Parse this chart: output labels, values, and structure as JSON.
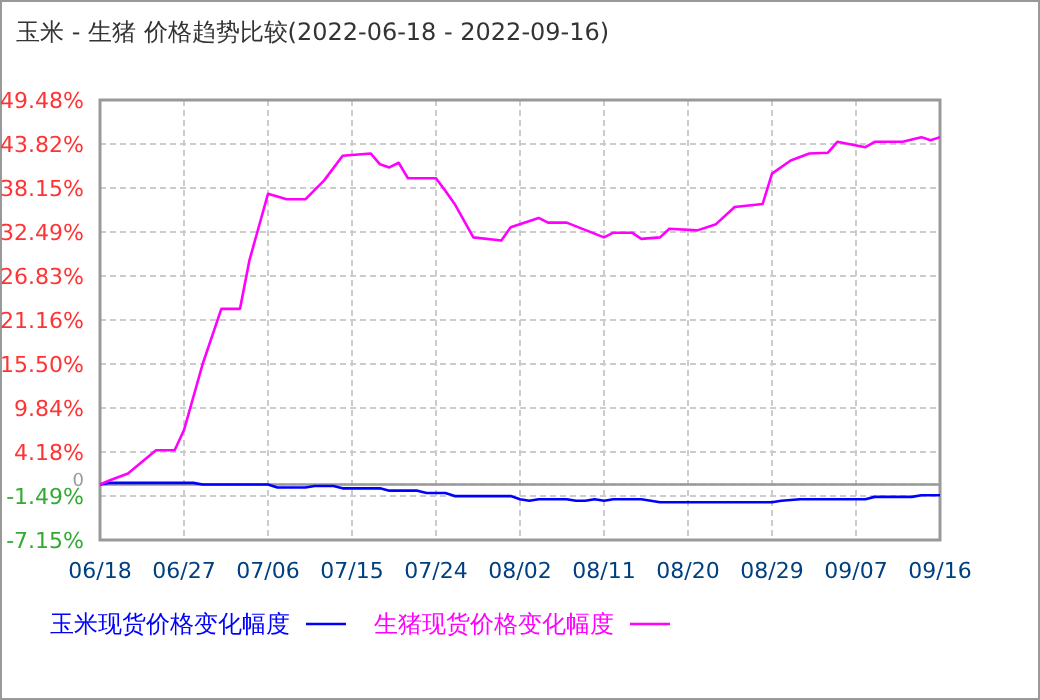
{
  "chart_data": {
    "type": "line",
    "title": "玉米 - 生猪 价格趋势比较(2022-06-18 - 2022-09-16)",
    "xlim": [
      "2022-06-18",
      "2022-09-16"
    ],
    "xticks": [
      {
        "value": "2022-06-18",
        "label": "06/18"
      },
      {
        "value": "2022-06-27",
        "label": "06/27"
      },
      {
        "value": "2022-07-06",
        "label": "07/06"
      },
      {
        "value": "2022-07-15",
        "label": "07/15"
      },
      {
        "value": "2022-07-24",
        "label": "07/24"
      },
      {
        "value": "2022-08-02",
        "label": "08/02"
      },
      {
        "value": "2022-08-11",
        "label": "08/11"
      },
      {
        "value": "2022-08-20",
        "label": "08/20"
      },
      {
        "value": "2022-08-29",
        "label": "08/29"
      },
      {
        "value": "2022-09-07",
        "label": "09/07"
      },
      {
        "value": "2022-09-16",
        "label": "09/16"
      }
    ],
    "ylim": [
      -7.15,
      49.48
    ],
    "yticks": [
      {
        "value": -7.15,
        "label": "-7.15%"
      },
      {
        "value": -1.49,
        "label": "-1.49%"
      },
      0,
      {
        "value": 4.18,
        "label": "4.18%"
      },
      {
        "value": 9.84,
        "label": "9.84%"
      },
      {
        "value": 15.5,
        "label": "15.50%"
      },
      {
        "value": 21.16,
        "label": "21.16%"
      },
      {
        "value": 26.83,
        "label": "26.83%"
      },
      {
        "value": 32.49,
        "label": "32.49%"
      },
      {
        "value": 38.15,
        "label": "38.15%"
      },
      {
        "value": 43.82,
        "label": "43.82%"
      },
      {
        "value": 49.48,
        "label": "49.48%"
      }
    ],
    "grid": true,
    "legend": "bottom",
    "marker": "none",
    "line_style": "solid",
    "ref_lines": [
      {
        "axis": "y",
        "value": 0,
        "color": "#999999"
      }
    ],
    "series": [
      {
        "name": "玉米现货价格变化幅度",
        "color": "#0000ff",
        "x": [
          "2022-06-18",
          "2022-06-19",
          "2022-06-28",
          "2022-06-29",
          "2022-07-06",
          "2022-07-07",
          "2022-07-10",
          "2022-07-11",
          "2022-07-13",
          "2022-07-14",
          "2022-07-18",
          "2022-07-19",
          "2022-07-22",
          "2022-07-23",
          "2022-07-25",
          "2022-07-26",
          "2022-08-01",
          "2022-08-02",
          "2022-08-03",
          "2022-08-04",
          "2022-08-07",
          "2022-08-08",
          "2022-08-09",
          "2022-08-10",
          "2022-08-11",
          "2022-08-12",
          "2022-08-15",
          "2022-08-17",
          "2022-08-29",
          "2022-08-30",
          "2022-09-01",
          "2022-09-08",
          "2022-09-09",
          "2022-09-13",
          "2022-09-14",
          "2022-09-16"
        ],
        "values": [
          0,
          0.2,
          0.2,
          0,
          0,
          -0.4,
          -0.4,
          -0.2,
          -0.2,
          -0.5,
          -0.5,
          -0.8,
          -0.8,
          -1.1,
          -1.1,
          -1.5,
          -1.5,
          -1.9,
          -2.1,
          -1.9,
          -1.9,
          -2.1,
          -2.1,
          -1.9,
          -2.1,
          -1.9,
          -1.9,
          -2.3,
          -2.3,
          -2.1,
          -1.9,
          -1.9,
          -1.6,
          -1.6,
          -1.4,
          -1.4
        ]
      },
      {
        "name": "生猪现货价格变化幅度",
        "color": "#ff00ff",
        "x": [
          "2022-06-18",
          "2022-06-19",
          "2022-06-21",
          "2022-06-24",
          "2022-06-26",
          "2022-06-27",
          "2022-06-29",
          "2022-07-01",
          "2022-07-03",
          "2022-07-04",
          "2022-07-05",
          "2022-07-06",
          "2022-07-08",
          "2022-07-10",
          "2022-07-12",
          "2022-07-14",
          "2022-07-17",
          "2022-07-18",
          "2022-07-19",
          "2022-07-20",
          "2022-07-21",
          "2022-07-24",
          "2022-07-25",
          "2022-07-26",
          "2022-07-28",
          "2022-07-31",
          "2022-08-01",
          "2022-08-04",
          "2022-08-05",
          "2022-08-07",
          "2022-08-11",
          "2022-08-12",
          "2022-08-14",
          "2022-08-15",
          "2022-08-17",
          "2022-08-18",
          "2022-08-21",
          "2022-08-23",
          "2022-08-25",
          "2022-08-28",
          "2022-08-29",
          "2022-08-31",
          "2022-09-02",
          "2022-09-04",
          "2022-09-05",
          "2022-09-08",
          "2022-09-09",
          "2022-09-12",
          "2022-09-14",
          "2022-09-15",
          "2022-09-16"
        ],
        "values": [
          0,
          0.5,
          1.4,
          4.4,
          4.4,
          7.0,
          15.5,
          22.6,
          22.6,
          28.8,
          33.1,
          37.4,
          36.7,
          36.7,
          39.1,
          42.3,
          42.6,
          41.2,
          40.8,
          41.4,
          39.4,
          39.4,
          37.8,
          36.1,
          31.8,
          31.4,
          33.1,
          34.3,
          33.7,
          33.7,
          31.8,
          32.4,
          32.4,
          31.6,
          31.8,
          32.9,
          32.7,
          33.5,
          35.7,
          36.1,
          40.0,
          41.7,
          42.6,
          42.7,
          44.1,
          43.4,
          44.1,
          44.1,
          44.7,
          44.3,
          44.7
        ]
      }
    ]
  }
}
